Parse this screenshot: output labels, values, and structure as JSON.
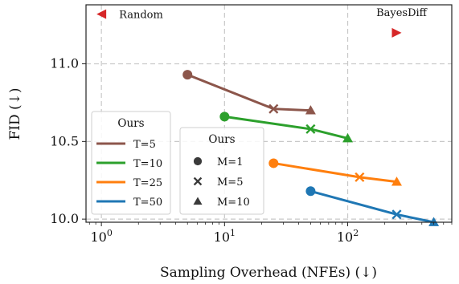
{
  "chart_data": {
    "type": "line",
    "xlabel": "Sampling Overhead (NFEs) (↓)",
    "ylabel": "FID (↓)",
    "xscale": "log",
    "xlim": [
      0.75,
      700
    ],
    "ylim": [
      9.98,
      11.38
    ],
    "xticks": [
      {
        "base": "10",
        "exp": "0",
        "value": 1
      },
      {
        "base": "10",
        "exp": "1",
        "value": 10
      },
      {
        "base": "10",
        "exp": "2",
        "value": 100
      }
    ],
    "yticks": [
      {
        "label": "10.0",
        "value": 10.0
      },
      {
        "label": "10.5",
        "value": 10.5
      },
      {
        "label": "11.0",
        "value": 11.0
      }
    ],
    "grid": true,
    "series": [
      {
        "name": "T=5",
        "color": "#8c564b",
        "points": [
          {
            "x": 5,
            "y": 10.93,
            "M": 1
          },
          {
            "x": 25,
            "y": 10.71,
            "M": 5
          },
          {
            "x": 50,
            "y": 10.7,
            "M": 10
          }
        ]
      },
      {
        "name": "T=10",
        "color": "#2ca02c",
        "points": [
          {
            "x": 10,
            "y": 10.66,
            "M": 1
          },
          {
            "x": 50,
            "y": 10.58,
            "M": 5
          },
          {
            "x": 100,
            "y": 10.52,
            "M": 10
          }
        ]
      },
      {
        "name": "T=25",
        "color": "#ff7f0e",
        "points": [
          {
            "x": 25,
            "y": 10.36,
            "M": 1
          },
          {
            "x": 125,
            "y": 10.27,
            "M": 5
          },
          {
            "x": 250,
            "y": 10.24,
            "M": 10
          }
        ]
      },
      {
        "name": "T=50",
        "color": "#1f77b4",
        "points": [
          {
            "x": 50,
            "y": 10.18,
            "M": 1
          },
          {
            "x": 250,
            "y": 10.03,
            "M": 5
          },
          {
            "x": 500,
            "y": 9.98,
            "M": 10
          }
        ]
      }
    ],
    "baselines": [
      {
        "label": "Random",
        "x": 1,
        "y": 11.32,
        "marker": "triangle-left",
        "color": "#d62728"
      },
      {
        "label": "BayesDiff",
        "x": 250,
        "y": 11.2,
        "marker": "triangle-right",
        "color": "#d62728"
      }
    ],
    "legend_series": {
      "title": "Ours",
      "placement": "lower-left",
      "entries": [
        "T=5",
        "T=10",
        "T=25",
        "T=50"
      ]
    },
    "legend_markers": {
      "title": "Ours",
      "placement": "lower-center",
      "entries": [
        {
          "label": "M=1",
          "marker": "circle"
        },
        {
          "label": "M=5",
          "marker": "x"
        },
        {
          "label": "M=10",
          "marker": "triangle"
        }
      ]
    }
  }
}
